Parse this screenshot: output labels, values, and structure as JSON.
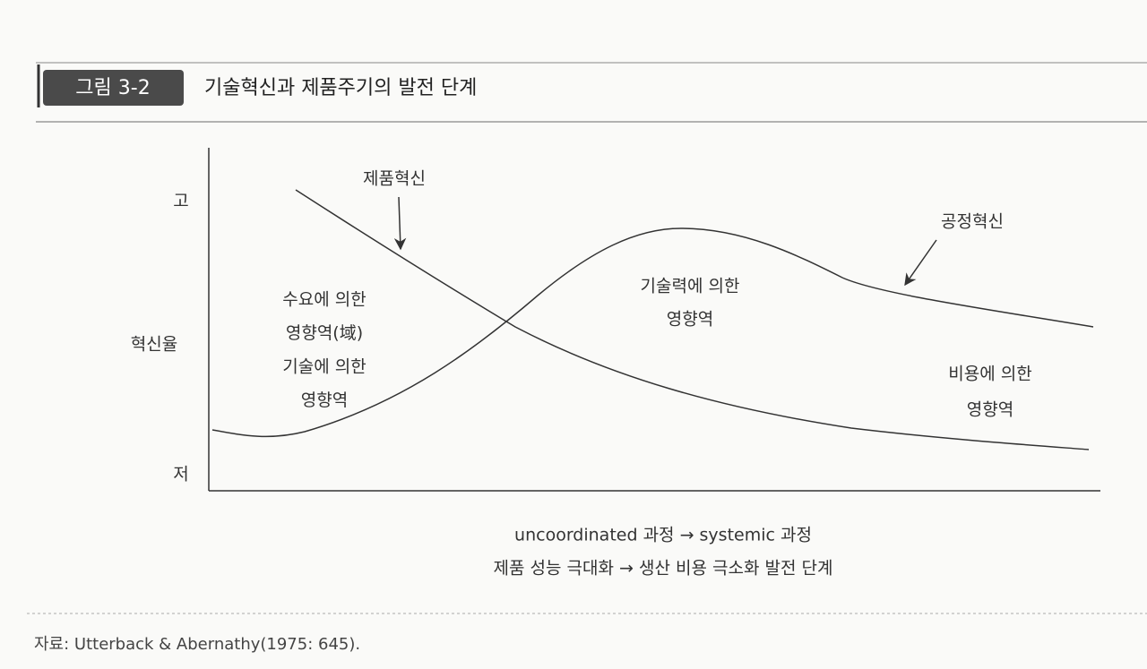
{
  "header": {
    "figure_label": "그림 3-2",
    "title": "기술혁신과 제품주기의 발전 단계"
  },
  "y_axis": {
    "high": "고",
    "label": "혁신율",
    "low": "저"
  },
  "curves": {
    "product": "제품혁신",
    "process": "공정혁신"
  },
  "regions": [
    {
      "lines": [
        "수요에 의한",
        "영향역(域)",
        "기술에 의한",
        "영향역"
      ]
    },
    {
      "lines": [
        "기술력에 의한",
        "영향역"
      ]
    },
    {
      "lines": [
        "비용에 의한",
        "영향역"
      ]
    }
  ],
  "x_axis": {
    "lines": [
      "uncoordinated 과정 → systemic 과정",
      "제품 성능 극대화 → 생산 비용 극소화 발전 단계"
    ]
  },
  "source": "자료: Utterback & Abernathy(1975: 645)."
}
